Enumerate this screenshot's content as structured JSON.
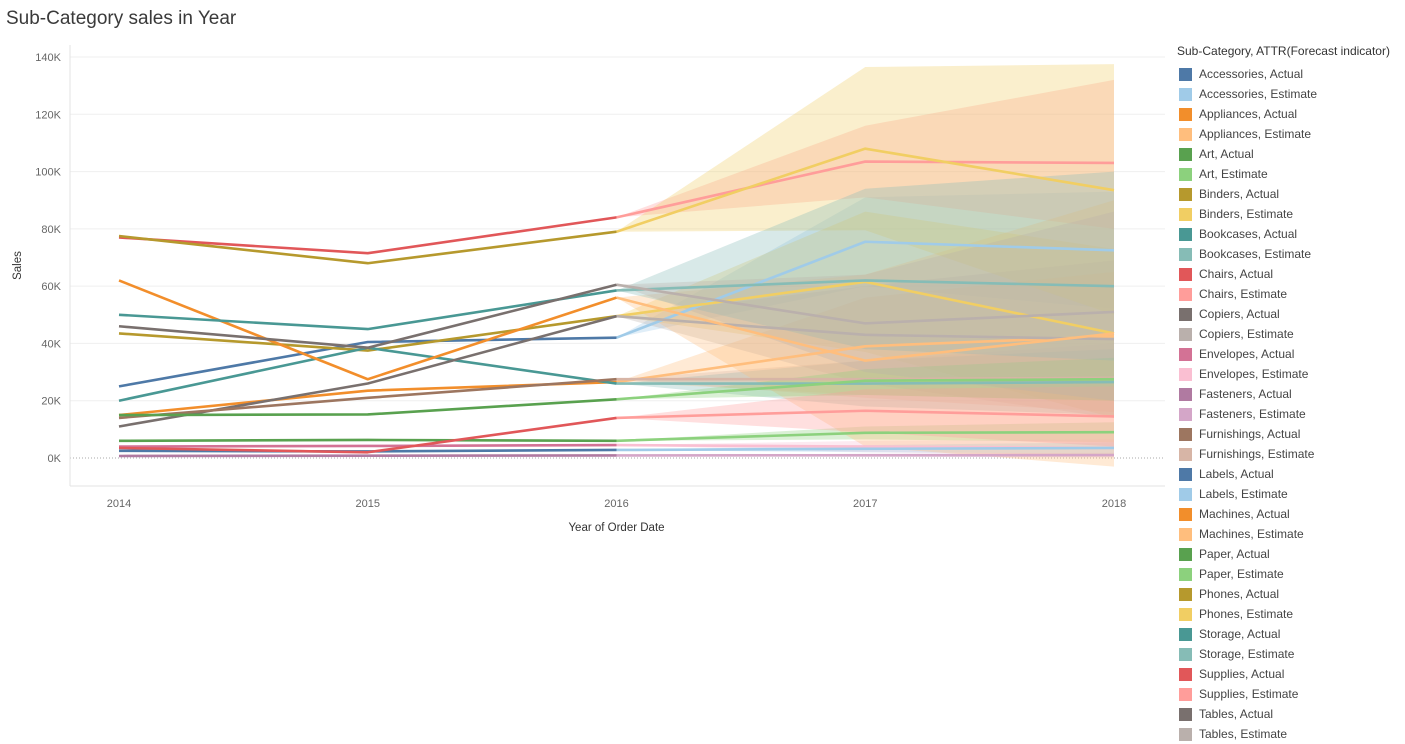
{
  "title": "Sub-Category sales in Year",
  "legend": {
    "title": "Sub-Category, ATTR(Forecast indicator)",
    "items": [
      {
        "label": "Accessories, Actual",
        "color": "#4e79a7"
      },
      {
        "label": "Accessories, Estimate",
        "color": "#a0cbe8"
      },
      {
        "label": "Appliances, Actual",
        "color": "#f28e2b"
      },
      {
        "label": "Appliances, Estimate",
        "color": "#ffbe7d"
      },
      {
        "label": "Art, Actual",
        "color": "#59a14f"
      },
      {
        "label": "Art, Estimate",
        "color": "#8cd17d"
      },
      {
        "label": "Binders, Actual",
        "color": "#b6992d"
      },
      {
        "label": "Binders, Estimate",
        "color": "#f1ce63"
      },
      {
        "label": "Bookcases, Actual",
        "color": "#499894"
      },
      {
        "label": "Bookcases, Estimate",
        "color": "#86bcb6"
      },
      {
        "label": "Chairs, Actual",
        "color": "#e15759"
      },
      {
        "label": "Chairs, Estimate",
        "color": "#ff9d9a"
      },
      {
        "label": "Copiers, Actual",
        "color": "#79706e"
      },
      {
        "label": "Copiers, Estimate",
        "color": "#bab0ac"
      },
      {
        "label": "Envelopes, Actual",
        "color": "#d37295"
      },
      {
        "label": "Envelopes, Estimate",
        "color": "#fabfd2"
      },
      {
        "label": "Fasteners, Actual",
        "color": "#b07aa1"
      },
      {
        "label": "Fasteners, Estimate",
        "color": "#d4a6c8"
      },
      {
        "label": "Furnishings, Actual",
        "color": "#9d7660"
      },
      {
        "label": "Furnishings, Estimate",
        "color": "#d7b5a6"
      },
      {
        "label": "Labels, Actual",
        "color": "#4e79a7"
      },
      {
        "label": "Labels, Estimate",
        "color": "#a0cbe8"
      },
      {
        "label": "Machines, Actual",
        "color": "#f28e2b"
      },
      {
        "label": "Machines, Estimate",
        "color": "#ffbe7d"
      },
      {
        "label": "Paper, Actual",
        "color": "#59a14f"
      },
      {
        "label": "Paper, Estimate",
        "color": "#8cd17d"
      },
      {
        "label": "Phones, Actual",
        "color": "#b6992d"
      },
      {
        "label": "Phones, Estimate",
        "color": "#f1ce63"
      },
      {
        "label": "Storage, Actual",
        "color": "#499894"
      },
      {
        "label": "Storage, Estimate",
        "color": "#86bcb6"
      },
      {
        "label": "Supplies, Actual",
        "color": "#e15759"
      },
      {
        "label": "Supplies, Estimate",
        "color": "#ff9d9a"
      },
      {
        "label": "Tables, Actual",
        "color": "#79706e"
      },
      {
        "label": "Tables, Estimate",
        "color": "#bab0ac"
      }
    ]
  },
  "chart_data": {
    "type": "line",
    "title": "Sub-Category sales in Year",
    "xlabel": "Year of Order Date",
    "ylabel": "Sales",
    "x": [
      "2014",
      "2015",
      "2016",
      "2017",
      "2018"
    ],
    "xlim": [
      "2014",
      "2018"
    ],
    "ylim": [
      -10000,
      140000
    ],
    "yticks": [
      0,
      20000,
      40000,
      60000,
      80000,
      100000,
      120000,
      140000
    ],
    "ytick_labels": [
      "0K",
      "20K",
      "40K",
      "60K",
      "80K",
      "100K",
      "120K",
      "140K"
    ],
    "grid": true,
    "legend_position": "right",
    "actual_years": [
      "2014",
      "2015",
      "2016"
    ],
    "estimate_years": [
      "2016",
      "2017",
      "2018"
    ],
    "series": [
      {
        "name": "Accessories",
        "actual_color": "#4e79a7",
        "estimate_color": "#a0cbe8",
        "actual": [
          25000,
          40500,
          42000
        ],
        "estimate": [
          42000,
          75500,
          72500
        ],
        "band_low": [
          42000,
          60000,
          52000
        ],
        "band_high": [
          42000,
          91000,
          93000
        ]
      },
      {
        "name": "Appliances",
        "actual_color": "#f28e2b",
        "estimate_color": "#ffbe7d",
        "actual": [
          15000,
          23500,
          26500
        ],
        "estimate": [
          26500,
          39000,
          42500
        ],
        "band_low": [
          26500,
          22000,
          20000
        ],
        "band_high": [
          26500,
          56000,
          65000
        ]
      },
      {
        "name": "Art",
        "actual_color": "#59a14f",
        "estimate_color": "#8cd17d",
        "actual": [
          6000,
          6300,
          6000
        ],
        "estimate": [
          6000,
          8800,
          9000
        ],
        "band_low": [
          6000,
          6500,
          5500
        ],
        "band_high": [
          6000,
          11000,
          12500
        ]
      },
      {
        "name": "Binders",
        "actual_color": "#b6992d",
        "estimate_color": "#f1ce63",
        "actual": [
          43500,
          37500,
          49500
        ],
        "estimate": [
          49500,
          61500,
          43500
        ],
        "band_low": [
          49500,
          37000,
          14000
        ],
        "band_high": [
          49500,
          86000,
          73000
        ]
      },
      {
        "name": "Bookcases",
        "actual_color": "#499894",
        "estimate_color": "#86bcb6",
        "actual": [
          20000,
          38500,
          26000
        ],
        "estimate": [
          26000,
          26000,
          26500
        ],
        "band_low": [
          26000,
          18000,
          15000
        ],
        "band_high": [
          26000,
          34000,
          38000
        ]
      },
      {
        "name": "Chairs",
        "actual_color": "#e15759",
        "estimate_color": "#ff9d9a",
        "actual": [
          77000,
          71500,
          84000
        ],
        "estimate": [
          84000,
          103500,
          103000
        ],
        "band_low": [
          84000,
          91000,
          80000
        ],
        "band_high": [
          84000,
          116000,
          132000
        ]
      },
      {
        "name": "Copiers",
        "actual_color": "#79706e",
        "estimate_color": "#bab0ac",
        "actual": [
          11000,
          26000,
          49500
        ],
        "estimate": [
          49500,
          43000,
          41500
        ],
        "band_low": [
          49500,
          26000,
          14000
        ],
        "band_high": [
          49500,
          60000,
          69000
        ]
      },
      {
        "name": "Envelopes",
        "actual_color": "#d37295",
        "estimate_color": "#fabfd2",
        "actual": [
          4000,
          4200,
          4500
        ],
        "estimate": [
          4500,
          4000,
          3500
        ],
        "band_low": [
          4500,
          2000,
          1000
        ],
        "band_high": [
          4500,
          6000,
          6500
        ]
      },
      {
        "name": "Fasteners",
        "actual_color": "#b07aa1",
        "estimate_color": "#d4a6c8",
        "actual": [
          700,
          800,
          900
        ],
        "estimate": [
          900,
          950,
          1000
        ],
        "band_low": [
          900,
          500,
          200
        ],
        "band_high": [
          900,
          1500,
          1800
        ]
      },
      {
        "name": "Furnishings",
        "actual_color": "#9d7660",
        "estimate_color": "#d7b5a6",
        "actual": [
          14000,
          21000,
          27500
        ],
        "estimate": [
          27500,
          27500,
          28000
        ],
        "band_low": [
          27500,
          21000,
          16000
        ],
        "band_high": [
          27500,
          34000,
          40000
        ]
      },
      {
        "name": "Labels",
        "actual_color": "#4e79a7",
        "estimate_color": "#a0cbe8",
        "actual": [
          2500,
          2300,
          2800
        ],
        "estimate": [
          2800,
          3200,
          3500
        ],
        "band_low": [
          2800,
          2000,
          1500
        ],
        "band_high": [
          2800,
          4500,
          5500
        ]
      },
      {
        "name": "Machines",
        "actual_color": "#f28e2b",
        "estimate_color": "#ffbe7d",
        "actual": [
          62000,
          27500,
          56000
        ],
        "estimate": [
          56000,
          34000,
          43500
        ],
        "band_low": [
          56000,
          4000,
          -3000
        ],
        "band_high": [
          56000,
          64000,
          90000
        ]
      },
      {
        "name": "Paper",
        "actual_color": "#59a14f",
        "estimate_color": "#8cd17d",
        "actual": [
          15000,
          15200,
          20500
        ],
        "estimate": [
          20500,
          27000,
          27500
        ],
        "band_low": [
          20500,
          22000,
          20000
        ],
        "band_high": [
          20500,
          31000,
          35000
        ]
      },
      {
        "name": "Phones",
        "actual_color": "#b6992d",
        "estimate_color": "#f1ce63",
        "actual": [
          77500,
          68000,
          79000
        ],
        "estimate": [
          79000,
          108000,
          93500
        ],
        "band_low": [
          79000,
          79500,
          50000
        ],
        "band_high": [
          79000,
          136500,
          137500
        ]
      },
      {
        "name": "Storage",
        "actual_color": "#499894",
        "estimate_color": "#86bcb6",
        "actual": [
          50000,
          45000,
          58500
        ],
        "estimate": [
          58500,
          62000,
          60000
        ],
        "band_low": [
          58500,
          38000,
          34000
        ],
        "band_high": [
          58500,
          94000,
          100000
        ]
      },
      {
        "name": "Supplies",
        "actual_color": "#e15759",
        "estimate_color": "#ff9d9a",
        "actual": [
          3500,
          2000,
          14000
        ],
        "estimate": [
          14000,
          16500,
          14500
        ],
        "band_low": [
          14000,
          9000,
          4000
        ],
        "band_high": [
          14000,
          24000,
          25000
        ]
      },
      {
        "name": "Tables",
        "actual_color": "#79706e",
        "estimate_color": "#bab0ac",
        "actual": [
          46000,
          38500,
          60500
        ],
        "estimate": [
          60500,
          47000,
          51000
        ],
        "band_low": [
          60500,
          30000,
          20000
        ],
        "band_high": [
          60500,
          64000,
          86000
        ]
      }
    ]
  }
}
